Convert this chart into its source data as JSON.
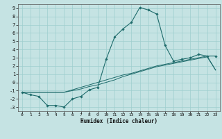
{
  "xlabel": "Humidex (Indice chaleur)",
  "background_color": "#c5e3e3",
  "grid_color": "#9ecece",
  "line_color": "#1e6b6b",
  "xlim": [
    -0.5,
    23.5
  ],
  "ylim": [
    -3.5,
    9.5
  ],
  "xticks": [
    0,
    1,
    2,
    3,
    4,
    5,
    6,
    7,
    8,
    9,
    10,
    11,
    12,
    13,
    14,
    15,
    16,
    17,
    18,
    19,
    20,
    21,
    22,
    23
  ],
  "yticks": [
    -3,
    -2,
    -1,
    0,
    1,
    2,
    3,
    4,
    5,
    6,
    7,
    8,
    9
  ],
  "line1_x": [
    0,
    1,
    2,
    3,
    4,
    5,
    6,
    7,
    8,
    9,
    10,
    11,
    12,
    13,
    14,
    15,
    16,
    17,
    18,
    19,
    20,
    21,
    22,
    23
  ],
  "line1_y": [
    -1.2,
    -1.5,
    -1.7,
    -2.8,
    -2.8,
    -3.0,
    -2.0,
    -1.7,
    -0.9,
    -0.6,
    2.8,
    5.5,
    6.5,
    7.3,
    9.1,
    8.8,
    8.3,
    4.5,
    2.6,
    2.8,
    3.0,
    3.4,
    3.2,
    3.2
  ],
  "line2_x": [
    0,
    1,
    2,
    3,
    4,
    5,
    6,
    7,
    8,
    9,
    10,
    11,
    12,
    13,
    14,
    15,
    16,
    17,
    18,
    19,
    20,
    21,
    22,
    23
  ],
  "line2_y": [
    -1.2,
    -1.2,
    -1.2,
    -1.2,
    -1.2,
    -1.2,
    -0.9,
    -0.6,
    -0.3,
    0.0,
    0.3,
    0.6,
    0.9,
    1.1,
    1.4,
    1.7,
    2.0,
    2.2,
    2.4,
    2.6,
    2.8,
    3.0,
    3.2,
    1.5
  ],
  "line3_x": [
    0,
    1,
    2,
    3,
    4,
    5,
    6,
    7,
    8,
    9,
    10,
    11,
    12,
    13,
    14,
    15,
    16,
    17,
    18,
    19,
    20,
    21,
    22,
    23
  ],
  "line3_y": [
    -1.2,
    -1.2,
    -1.2,
    -1.2,
    -1.2,
    -1.2,
    -1.0,
    -0.8,
    -0.5,
    -0.3,
    0.0,
    0.3,
    0.7,
    1.0,
    1.3,
    1.6,
    1.9,
    2.1,
    2.3,
    2.5,
    2.7,
    2.9,
    3.1,
    1.5
  ]
}
